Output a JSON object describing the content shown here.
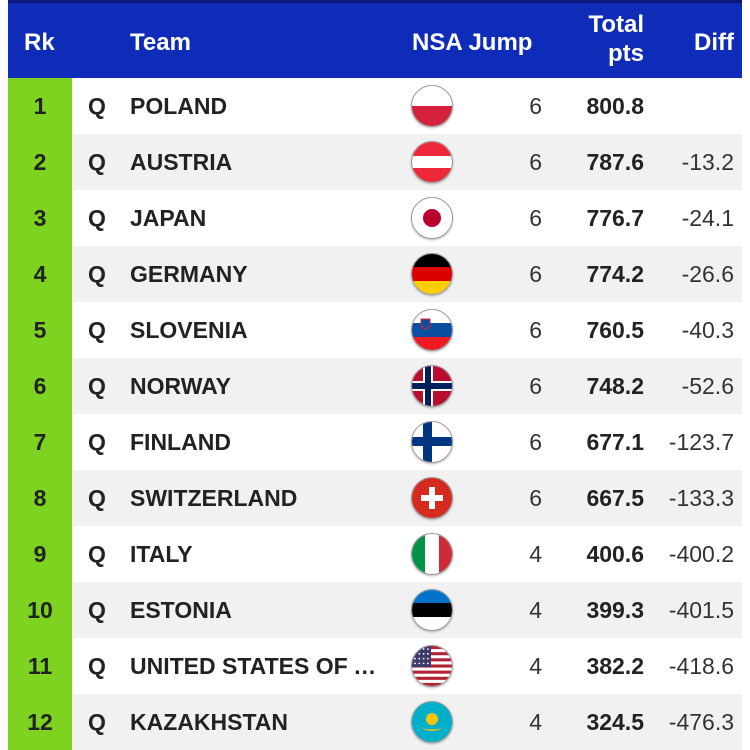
{
  "header": {
    "rank": "Rk",
    "team": "Team",
    "nsa_jump": "NSA Jump",
    "total_line1": "Total",
    "total_line2": "pts",
    "diff": "Diff"
  },
  "colors": {
    "header_bg": "#0f2cb8",
    "rank_bg": "#7ed321"
  },
  "rows": [
    {
      "rank": "1",
      "status": "Q",
      "team": "POLAND",
      "flag": "poland-flag-icon",
      "jump": "6",
      "total": "800.8",
      "diff": ""
    },
    {
      "rank": "2",
      "status": "Q",
      "team": "AUSTRIA",
      "flag": "austria-flag-icon",
      "jump": "6",
      "total": "787.6",
      "diff": "-13.2"
    },
    {
      "rank": "3",
      "status": "Q",
      "team": "JAPAN",
      "flag": "japan-flag-icon",
      "jump": "6",
      "total": "776.7",
      "diff": "-24.1"
    },
    {
      "rank": "4",
      "status": "Q",
      "team": "GERMANY",
      "flag": "germany-flag-icon",
      "jump": "6",
      "total": "774.2",
      "diff": "-26.6"
    },
    {
      "rank": "5",
      "status": "Q",
      "team": "SLOVENIA",
      "flag": "slovenia-flag-icon",
      "jump": "6",
      "total": "760.5",
      "diff": "-40.3"
    },
    {
      "rank": "6",
      "status": "Q",
      "team": "NORWAY",
      "flag": "norway-flag-icon",
      "jump": "6",
      "total": "748.2",
      "diff": "-52.6"
    },
    {
      "rank": "7",
      "status": "Q",
      "team": "FINLAND",
      "flag": "finland-flag-icon",
      "jump": "6",
      "total": "677.1",
      "diff": "-123.7"
    },
    {
      "rank": "8",
      "status": "Q",
      "team": "SWITZERLAND",
      "flag": "switzerland-flag-icon",
      "jump": "6",
      "total": "667.5",
      "diff": "-133.3"
    },
    {
      "rank": "9",
      "status": "Q",
      "team": "ITALY",
      "flag": "italy-flag-icon",
      "jump": "4",
      "total": "400.6",
      "diff": "-400.2"
    },
    {
      "rank": "10",
      "status": "Q",
      "team": "ESTONIA",
      "flag": "estonia-flag-icon",
      "jump": "4",
      "total": "399.3",
      "diff": "-401.5"
    },
    {
      "rank": "11",
      "status": "Q",
      "team": "UNITED STATES OF AMERICA",
      "flag": "usa-flag-icon",
      "jump": "4",
      "total": "382.2",
      "diff": "-418.6"
    },
    {
      "rank": "12",
      "status": "Q",
      "team": "KAZAKHSTAN",
      "flag": "kazakhstan-flag-icon",
      "jump": "4",
      "total": "324.5",
      "diff": "-476.3"
    }
  ]
}
